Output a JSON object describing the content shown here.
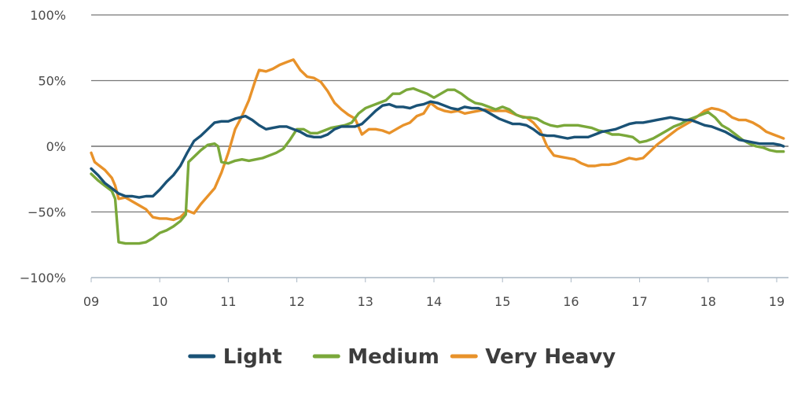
{
  "chart_data": {
    "type": "line",
    "title": "",
    "xlabel": "",
    "ylabel": "",
    "ylim": [
      -100,
      100
    ],
    "xlim": [
      9,
      19.1
    ],
    "grid": "horizontal",
    "legend_position": "bottom",
    "y_ticks": [
      {
        "value": 100,
        "label": "100%"
      },
      {
        "value": 50,
        "label": "50%"
      },
      {
        "value": 0,
        "label": "0%"
      },
      {
        "value": -50,
        "label": "−50%"
      },
      {
        "value": -100,
        "label": "−100%"
      }
    ],
    "x_ticks": [
      {
        "value": 9,
        "label": "09"
      },
      {
        "value": 10,
        "label": "10"
      },
      {
        "value": 11,
        "label": "11"
      },
      {
        "value": 12,
        "label": "12"
      },
      {
        "value": 13,
        "label": "13"
      },
      {
        "value": 14,
        "label": "14"
      },
      {
        "value": 15,
        "label": "15"
      },
      {
        "value": 16,
        "label": "16"
      },
      {
        "value": 17,
        "label": "17"
      },
      {
        "value": 18,
        "label": "18"
      },
      {
        "value": 19,
        "label": "19"
      }
    ],
    "series": [
      {
        "name": "Light",
        "color": "#1a5276",
        "points": [
          [
            9.0,
            -17
          ],
          [
            9.1,
            -22
          ],
          [
            9.2,
            -28
          ],
          [
            9.3,
            -32
          ],
          [
            9.4,
            -36
          ],
          [
            9.5,
            -38
          ],
          [
            9.6,
            -38
          ],
          [
            9.7,
            -39
          ],
          [
            9.8,
            -38
          ],
          [
            9.9,
            -38
          ],
          [
            10.0,
            -33
          ],
          [
            10.1,
            -27
          ],
          [
            10.2,
            -22
          ],
          [
            10.3,
            -15
          ],
          [
            10.4,
            -5
          ],
          [
            10.5,
            4
          ],
          [
            10.6,
            8
          ],
          [
            10.7,
            13
          ],
          [
            10.8,
            18
          ],
          [
            10.9,
            19
          ],
          [
            11.0,
            19
          ],
          [
            11.1,
            21
          ],
          [
            11.25,
            23
          ],
          [
            11.35,
            20
          ],
          [
            11.45,
            16
          ],
          [
            11.55,
            13
          ],
          [
            11.65,
            14
          ],
          [
            11.75,
            15
          ],
          [
            11.85,
            15
          ],
          [
            11.95,
            13
          ],
          [
            12.05,
            11
          ],
          [
            12.15,
            8
          ],
          [
            12.25,
            7
          ],
          [
            12.35,
            7
          ],
          [
            12.45,
            9
          ],
          [
            12.55,
            13
          ],
          [
            12.65,
            15
          ],
          [
            12.75,
            15
          ],
          [
            12.85,
            15
          ],
          [
            12.95,
            17
          ],
          [
            13.05,
            22
          ],
          [
            13.15,
            27
          ],
          [
            13.25,
            31
          ],
          [
            13.35,
            32
          ],
          [
            13.45,
            30
          ],
          [
            13.55,
            30
          ],
          [
            13.65,
            29
          ],
          [
            13.75,
            31
          ],
          [
            13.85,
            32
          ],
          [
            13.95,
            34
          ],
          [
            14.05,
            33
          ],
          [
            14.15,
            31
          ],
          [
            14.25,
            29
          ],
          [
            14.35,
            28
          ],
          [
            14.45,
            30
          ],
          [
            14.55,
            29
          ],
          [
            14.65,
            29
          ],
          [
            14.75,
            27
          ],
          [
            14.85,
            24
          ],
          [
            14.95,
            21
          ],
          [
            15.05,
            19
          ],
          [
            15.15,
            17
          ],
          [
            15.25,
            17
          ],
          [
            15.35,
            16
          ],
          [
            15.45,
            13
          ],
          [
            15.55,
            9
          ],
          [
            15.65,
            8
          ],
          [
            15.75,
            8
          ],
          [
            15.85,
            7
          ],
          [
            15.95,
            6
          ],
          [
            16.05,
            7
          ],
          [
            16.15,
            7
          ],
          [
            16.25,
            7
          ],
          [
            16.35,
            9
          ],
          [
            16.45,
            11
          ],
          [
            16.55,
            12
          ],
          [
            16.65,
            13
          ],
          [
            16.75,
            15
          ],
          [
            16.85,
            17
          ],
          [
            16.95,
            18
          ],
          [
            17.05,
            18
          ],
          [
            17.15,
            19
          ],
          [
            17.25,
            20
          ],
          [
            17.35,
            21
          ],
          [
            17.45,
            22
          ],
          [
            17.55,
            21
          ],
          [
            17.65,
            20
          ],
          [
            17.75,
            20
          ],
          [
            17.85,
            18
          ],
          [
            17.95,
            16
          ],
          [
            18.05,
            15
          ],
          [
            18.15,
            13
          ],
          [
            18.25,
            11
          ],
          [
            18.35,
            8
          ],
          [
            18.45,
            5
          ],
          [
            18.55,
            4
          ],
          [
            18.65,
            3
          ],
          [
            18.75,
            2
          ],
          [
            18.85,
            2
          ],
          [
            18.95,
            2
          ],
          [
            19.05,
            1
          ],
          [
            19.1,
            0
          ]
        ]
      },
      {
        "name": "Medium",
        "color": "#7aa83a",
        "points": [
          [
            9.0,
            -21
          ],
          [
            9.1,
            -26
          ],
          [
            9.2,
            -30
          ],
          [
            9.3,
            -34
          ],
          [
            9.35,
            -40
          ],
          [
            9.4,
            -73
          ],
          [
            9.5,
            -74
          ],
          [
            9.6,
            -74
          ],
          [
            9.7,
            -74
          ],
          [
            9.8,
            -73
          ],
          [
            9.9,
            -70
          ],
          [
            10.0,
            -66
          ],
          [
            10.1,
            -64
          ],
          [
            10.2,
            -61
          ],
          [
            10.3,
            -57
          ],
          [
            10.38,
            -52
          ],
          [
            10.42,
            -12
          ],
          [
            10.5,
            -8
          ],
          [
            10.6,
            -3
          ],
          [
            10.7,
            1
          ],
          [
            10.8,
            2
          ],
          [
            10.85,
            0
          ],
          [
            10.9,
            -12
          ],
          [
            11.0,
            -13
          ],
          [
            11.1,
            -11
          ],
          [
            11.2,
            -10
          ],
          [
            11.3,
            -11
          ],
          [
            11.4,
            -10
          ],
          [
            11.5,
            -9
          ],
          [
            11.6,
            -7
          ],
          [
            11.7,
            -5
          ],
          [
            11.8,
            -2
          ],
          [
            11.9,
            5
          ],
          [
            12.0,
            13
          ],
          [
            12.1,
            13
          ],
          [
            12.2,
            10
          ],
          [
            12.3,
            10
          ],
          [
            12.4,
            12
          ],
          [
            12.5,
            14
          ],
          [
            12.6,
            15
          ],
          [
            12.7,
            16
          ],
          [
            12.8,
            18
          ],
          [
            12.9,
            25
          ],
          [
            13.0,
            29
          ],
          [
            13.1,
            31
          ],
          [
            13.2,
            33
          ],
          [
            13.3,
            35
          ],
          [
            13.4,
            40
          ],
          [
            13.5,
            40
          ],
          [
            13.6,
            43
          ],
          [
            13.7,
            44
          ],
          [
            13.8,
            42
          ],
          [
            13.9,
            40
          ],
          [
            14.0,
            37
          ],
          [
            14.1,
            40
          ],
          [
            14.2,
            43
          ],
          [
            14.3,
            43
          ],
          [
            14.4,
            40
          ],
          [
            14.5,
            36
          ],
          [
            14.6,
            33
          ],
          [
            14.7,
            32
          ],
          [
            14.8,
            30
          ],
          [
            14.9,
            28
          ],
          [
            15.0,
            30
          ],
          [
            15.1,
            28
          ],
          [
            15.2,
            24
          ],
          [
            15.3,
            22
          ],
          [
            15.4,
            22
          ],
          [
            15.5,
            21
          ],
          [
            15.6,
            18
          ],
          [
            15.7,
            16
          ],
          [
            15.8,
            15
          ],
          [
            15.9,
            16
          ],
          [
            16.0,
            16
          ],
          [
            16.1,
            16
          ],
          [
            16.2,
            15
          ],
          [
            16.3,
            14
          ],
          [
            16.4,
            12
          ],
          [
            16.5,
            11
          ],
          [
            16.6,
            9
          ],
          [
            16.7,
            9
          ],
          [
            16.8,
            8
          ],
          [
            16.9,
            7
          ],
          [
            17.0,
            3
          ],
          [
            17.1,
            4
          ],
          [
            17.2,
            6
          ],
          [
            17.3,
            9
          ],
          [
            17.4,
            12
          ],
          [
            17.5,
            15
          ],
          [
            17.6,
            17
          ],
          [
            17.7,
            20
          ],
          [
            17.8,
            22
          ],
          [
            17.9,
            24
          ],
          [
            18.0,
            26
          ],
          [
            18.1,
            22
          ],
          [
            18.2,
            16
          ],
          [
            18.3,
            13
          ],
          [
            18.4,
            9
          ],
          [
            18.5,
            5
          ],
          [
            18.6,
            2
          ],
          [
            18.7,
            0
          ],
          [
            18.8,
            -1
          ],
          [
            18.9,
            -3
          ],
          [
            19.0,
            -4
          ],
          [
            19.1,
            -4
          ]
        ]
      },
      {
        "name": "Very Heavy",
        "color": "#e8922a",
        "points": [
          [
            9.0,
            -5
          ],
          [
            9.05,
            -12
          ],
          [
            9.1,
            -14
          ],
          [
            9.2,
            -18
          ],
          [
            9.3,
            -24
          ],
          [
            9.35,
            -30
          ],
          [
            9.4,
            -40
          ],
          [
            9.5,
            -39
          ],
          [
            9.6,
            -42
          ],
          [
            9.7,
            -45
          ],
          [
            9.8,
            -48
          ],
          [
            9.9,
            -54
          ],
          [
            10.0,
            -55
          ],
          [
            10.1,
            -55
          ],
          [
            10.2,
            -56
          ],
          [
            10.3,
            -54
          ],
          [
            10.4,
            -49
          ],
          [
            10.5,
            -51
          ],
          [
            10.6,
            -44
          ],
          [
            10.7,
            -38
          ],
          [
            10.8,
            -32
          ],
          [
            10.9,
            -20
          ],
          [
            11.0,
            -5
          ],
          [
            11.1,
            13
          ],
          [
            11.2,
            23
          ],
          [
            11.3,
            35
          ],
          [
            11.4,
            51
          ],
          [
            11.45,
            58
          ],
          [
            11.55,
            57
          ],
          [
            11.65,
            59
          ],
          [
            11.75,
            62
          ],
          [
            11.85,
            64
          ],
          [
            11.95,
            66
          ],
          [
            12.05,
            58
          ],
          [
            12.15,
            53
          ],
          [
            12.25,
            52
          ],
          [
            12.35,
            49
          ],
          [
            12.45,
            42
          ],
          [
            12.55,
            33
          ],
          [
            12.65,
            28
          ],
          [
            12.75,
            24
          ],
          [
            12.85,
            21
          ],
          [
            12.95,
            9
          ],
          [
            13.05,
            13
          ],
          [
            13.15,
            13
          ],
          [
            13.25,
            12
          ],
          [
            13.35,
            10
          ],
          [
            13.45,
            13
          ],
          [
            13.55,
            16
          ],
          [
            13.65,
            18
          ],
          [
            13.75,
            23
          ],
          [
            13.85,
            25
          ],
          [
            13.95,
            33
          ],
          [
            14.05,
            29
          ],
          [
            14.15,
            27
          ],
          [
            14.25,
            26
          ],
          [
            14.35,
            27
          ],
          [
            14.45,
            25
          ],
          [
            14.55,
            26
          ],
          [
            14.65,
            27
          ],
          [
            14.75,
            28
          ],
          [
            14.85,
            27
          ],
          [
            14.95,
            27
          ],
          [
            15.05,
            27
          ],
          [
            15.15,
            25
          ],
          [
            15.25,
            23
          ],
          [
            15.35,
            22
          ],
          [
            15.45,
            18
          ],
          [
            15.55,
            12
          ],
          [
            15.65,
            0
          ],
          [
            15.75,
            -7
          ],
          [
            15.85,
            -8
          ],
          [
            15.95,
            -9
          ],
          [
            16.05,
            -10
          ],
          [
            16.15,
            -13
          ],
          [
            16.25,
            -15
          ],
          [
            16.35,
            -15
          ],
          [
            16.45,
            -14
          ],
          [
            16.55,
            -14
          ],
          [
            16.65,
            -13
          ],
          [
            16.75,
            -11
          ],
          [
            16.85,
            -9
          ],
          [
            16.95,
            -10
          ],
          [
            17.05,
            -9
          ],
          [
            17.15,
            -4
          ],
          [
            17.25,
            1
          ],
          [
            17.35,
            5
          ],
          [
            17.45,
            9
          ],
          [
            17.55,
            13
          ],
          [
            17.65,
            16
          ],
          [
            17.75,
            19
          ],
          [
            17.85,
            23
          ],
          [
            17.95,
            27
          ],
          [
            18.05,
            29
          ],
          [
            18.15,
            28
          ],
          [
            18.25,
            26
          ],
          [
            18.35,
            22
          ],
          [
            18.45,
            20
          ],
          [
            18.55,
            20
          ],
          [
            18.65,
            18
          ],
          [
            18.75,
            15
          ],
          [
            18.85,
            11
          ],
          [
            18.95,
            9
          ],
          [
            19.05,
            7
          ],
          [
            19.1,
            6
          ]
        ]
      }
    ]
  }
}
